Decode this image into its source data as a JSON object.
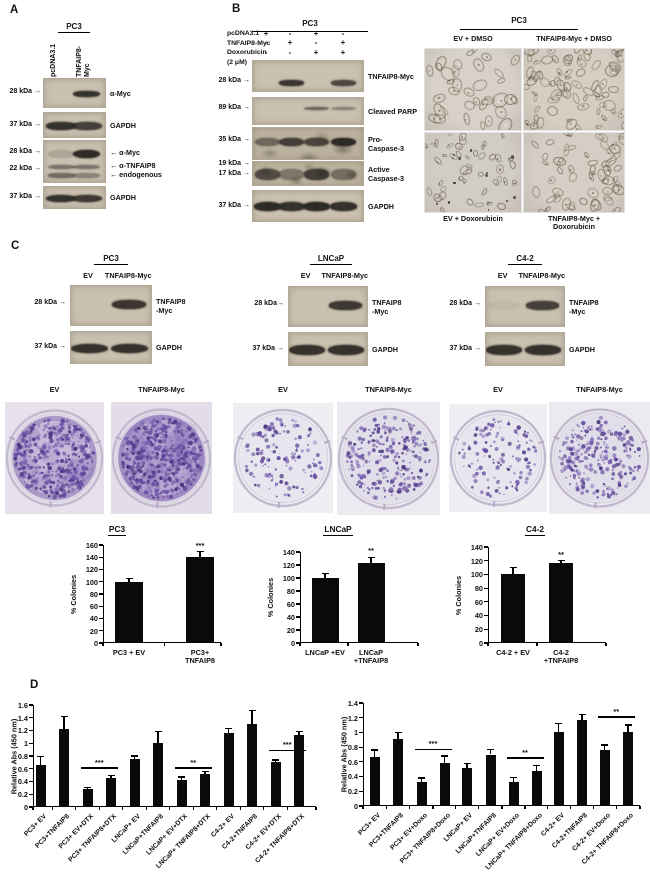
{
  "panels": {
    "a": {
      "letter": "A",
      "cell_line": "PC3",
      "lane_labels": [
        "pcDNA3.1",
        "TNFAIP8-Myc"
      ],
      "blots": [
        {
          "kda": [
            "28 kDa →"
          ],
          "label": [
            "α-Myc"
          ],
          "bands": [
            [
              0,
              0.95
            ]
          ]
        },
        {
          "kda": [
            "37 kDa →"
          ],
          "label": [
            "GAPDH"
          ],
          "bands": [
            [
              0.95,
              0.85
            ]
          ]
        },
        {
          "kda": [
            "28 kDa →",
            "22 kDa →"
          ],
          "label": [
            "← α-Myc",
            "← α-TNFAIP8",
            "← endogenous"
          ],
          "bands": [
            [
              0.18,
              1
            ],
            [
              0.5,
              0.5
            ],
            [
              0.55,
              0.4
            ]
          ]
        },
        {
          "kda": [
            "37 kDa →"
          ],
          "label": [
            "GAPDH"
          ],
          "bands": [
            [
              0.95,
              0.9
            ]
          ]
        }
      ]
    },
    "b": {
      "letter": "B",
      "cell_line": "PC3",
      "conditions": [
        {
          "label": "pcDNA3.1",
          "values": [
            "+",
            "-",
            "+",
            "-"
          ]
        },
        {
          "label": "TNFAIP8-Myc",
          "values": [
            "-",
            "+",
            "-",
            "+"
          ]
        },
        {
          "label": "Doxorubicin",
          "label2": "(2 μM)",
          "values": [
            "-",
            "-",
            "+",
            "+"
          ]
        }
      ],
      "blots": [
        {
          "kda": [
            "28 kDa →"
          ],
          "label": [
            "TNFAIP8-Myc"
          ],
          "bands": [
            [
              0,
              0.92,
              0,
              0.8
            ]
          ]
        },
        {
          "kda": [
            "89 kDa →"
          ],
          "label": [
            "Cleaved PARP"
          ],
          "bands": [
            [
              0,
              0,
              0.6,
              0.4
            ]
          ]
        },
        {
          "kda": [
            "35 kDa →"
          ],
          "label": [
            "Pro-",
            "Caspase-3"
          ],
          "bands": [
            [
              0.55,
              0.85,
              0.8,
              1
            ]
          ]
        },
        {
          "kda": [
            "19 kDa →",
            "17 kDa →"
          ],
          "label": [
            "Active",
            "Caspase-3"
          ],
          "bands": [
            [
              0.75,
              0.45,
              0.85,
              0.5
            ]
          ]
        },
        {
          "kda": [
            "37 kDa →"
          ],
          "label": [
            "GAPDH"
          ],
          "bands": [
            [
              1,
              0.95,
              1,
              0.95
            ]
          ]
        }
      ],
      "microscopy": {
        "cell_line": "PC3",
        "images": [
          {
            "label_lines": [
              "EV + DMSO"
            ],
            "appearance": "moderate"
          },
          {
            "label_lines": [
              "TNFAIP8-Myc + DMSO"
            ],
            "appearance": "dense"
          },
          {
            "label_lines": [
              "EV + Doxorubicin"
            ],
            "appearance": "apoptotic"
          },
          {
            "label_lines": [
              "TNFAIP8-Myc +",
              "Doxorubicin"
            ],
            "appearance": "medium"
          }
        ]
      }
    },
    "c": {
      "letter": "C",
      "groups": [
        {
          "cell_line": "PC3",
          "lane_labels": [
            "EV",
            "TNFAIP8-Myc"
          ],
          "blots": [
            {
              "kda": [
                "28 kDa →"
              ],
              "label": [
                "TNFAIP8",
                "-Myc"
              ],
              "bands": [
                [
                  0,
                  0.92
                ]
              ]
            },
            {
              "kda": [
                "37 kDa →"
              ],
              "label": [
                "GAPDH"
              ],
              "bands": [
                [
                  0.95,
                  0.95
                ]
              ]
            }
          ],
          "dishes": [
            {
              "label": "EV",
              "density": "dense"
            },
            {
              "label": "TNFAIP8-Myc",
              "density": "denser"
            }
          ]
        },
        {
          "cell_line": "LNCaP",
          "lane_labels": [
            "EV",
            "TNFAIP8-Myc"
          ],
          "blots": [
            {
              "kda": [
                "28 kDa→"
              ],
              "label": [
                "TNFAIP8",
                "-Myc"
              ],
              "bands": [
                [
                  0,
                  0.9
                ]
              ]
            },
            {
              "kda": [
                "37 kDa →"
              ],
              "label": [
                "GAPDH"
              ],
              "bands": [
                [
                  0.95,
                  0.95
                ]
              ]
            }
          ],
          "dishes": [
            {
              "label": "EV",
              "density": "sparse"
            },
            {
              "label": "TNFAIP8-Myc",
              "density": "medium"
            }
          ]
        },
        {
          "cell_line": "C4-2",
          "lane_labels": [
            "EV",
            "TNFAIP8-Myc"
          ],
          "blots": [
            {
              "kda": [
                "28 kDa →"
              ],
              "label": [
                "TNFAIP8",
                "-Myc"
              ],
              "bands": [
                [
                  0.05,
                  0.85
                ]
              ]
            },
            {
              "kda": [
                "37 kDa →"
              ],
              "label": [
                "GAPDH"
              ],
              "bands": [
                [
                  0.95,
                  0.95
                ]
              ]
            }
          ],
          "dishes": [
            {
              "label": "EV",
              "density": "sparse"
            },
            {
              "label": "TNFAIP8-Myc",
              "density": "medium"
            }
          ]
        }
      ]
    },
    "d": {
      "letter": "D"
    }
  },
  "chart_data": [
    {
      "id": "pc3_colonies",
      "type": "bar",
      "title": "PC3",
      "ylabel": "% Colonies",
      "ymax": 160,
      "ystep": 20,
      "categories": [
        "PC3 + EV",
        "PC3+ TNFAIP8"
      ],
      "category_lines": [
        [
          "PC3 + EV"
        ],
        [
          "PC3+",
          "TNFAIP8"
        ]
      ],
      "values": [
        100,
        140
      ],
      "errors": [
        5,
        9
      ],
      "sig_labels": [
        "",
        "***"
      ]
    },
    {
      "id": "lncap_colonies",
      "type": "bar",
      "title": "LNCaP",
      "ylabel": "% Colonies",
      "ymax": 140,
      "ystep": 20,
      "categories": [
        "LNCaP +EV",
        "LNCaP +TNFAIP8"
      ],
      "category_lines": [
        [
          "LNCaP +EV"
        ],
        [
          "LNCaP",
          "+TNFAIP8"
        ]
      ],
      "values": [
        100,
        123
      ],
      "errors": [
        7,
        9
      ],
      "sig_labels": [
        "",
        "**"
      ]
    },
    {
      "id": "c42_colonies",
      "type": "bar",
      "title": "C4-2",
      "ylabel": "% Colonies",
      "ymax": 140,
      "ystep": 20,
      "categories": [
        "C4-2 + EV",
        "C4-2 +TNFAIP8"
      ],
      "category_lines": [
        [
          "C4-2 + EV"
        ],
        [
          "C4-2",
          "+TNFAIP8"
        ]
      ],
      "values": [
        100,
        116
      ],
      "errors": [
        10,
        4
      ],
      "sig_labels": [
        "",
        "**"
      ]
    },
    {
      "id": "dtx",
      "type": "bar",
      "title": "",
      "ylabel": "Relative Abs (450 nm)",
      "ymax": 1.6,
      "ystep": 0.2,
      "categories": [
        "PC3+ EV",
        "PC3+TNFAIP8",
        "PC3+ EV+DTX",
        "PC3+ TNFAIP8+DTX",
        "LNCaP+ EV",
        "LNCaP+TNFAIP8",
        "LNCaP+ EV+DTX",
        "LNCaP+ TNFAIP8+DTX",
        "C4-2+ EV",
        "C4-2+TNFAIP8",
        "C4-2+ EV+DTX",
        "C4-2+ TNFAIP8+DTX"
      ],
      "values": [
        0.66,
        1.22,
        0.28,
        0.45,
        0.75,
        1.0,
        0.42,
        0.52,
        1.16,
        1.3,
        0.7,
        1.13
      ],
      "errors": [
        0.13,
        0.2,
        0.03,
        0.04,
        0.05,
        0.19,
        0.05,
        0.04,
        0.07,
        0.22,
        0.04,
        0.06
      ],
      "significance": [
        {
          "from": 2,
          "to": 3,
          "label": "***",
          "y": 0.62
        },
        {
          "from": 6,
          "to": 7,
          "label": "**",
          "y": 0.62
        },
        {
          "from": 10,
          "to": 11,
          "label": "***",
          "y": 0.9
        }
      ]
    },
    {
      "id": "doxo",
      "type": "bar",
      "title": "",
      "ylabel": "Relative Abs (450 nm)",
      "ymax": 1.4,
      "ystep": 0.2,
      "categories": [
        "PC3+ EV",
        "PC3+TNFAIP8",
        "PC3+ EV+Doxo",
        "PC3+ TNFAIP8+Doxo",
        "LNCaP+ EV",
        "LNCaP+TNFAIP8",
        "LNCaP+ EV+Doxo",
        "LNCaP+ TNFAIP8+Doxo",
        "C4-2+ EV",
        "C4-2+TNFAIP8",
        "C4-2+ EV+Doxo",
        "C4-2+ TNFAIP8+Doxo"
      ],
      "values": [
        0.66,
        0.91,
        0.32,
        0.58,
        0.51,
        0.7,
        0.33,
        0.48,
        1.0,
        1.17,
        0.76,
        1.01
      ],
      "errors": [
        0.1,
        0.09,
        0.06,
        0.1,
        0.07,
        0.07,
        0.06,
        0.07,
        0.12,
        0.07,
        0.07,
        0.09
      ],
      "significance": [
        {
          "from": 2,
          "to": 3,
          "label": "***",
          "y": 0.78
        },
        {
          "from": 6,
          "to": 7,
          "label": "**",
          "y": 0.66
        },
        {
          "from": 10,
          "to": 11,
          "label": "**",
          "y": 1.22
        }
      ]
    }
  ],
  "colors": {
    "bar": "#0a0a0a",
    "band": "#2e2a25",
    "blot_bg": "#cbc1b1",
    "colony_purple": "#5b4198",
    "axis": "#000000"
  }
}
